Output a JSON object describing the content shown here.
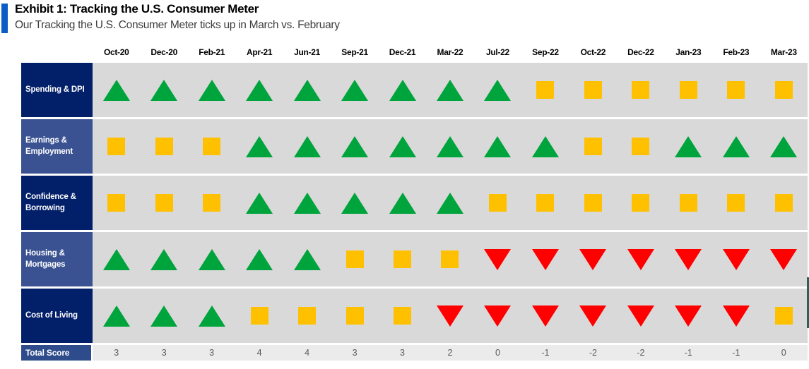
{
  "header": {
    "title": "Exhibit 1: Tracking the U.S. Consumer Meter",
    "subtitle": "Our Tracking the U.S. Consumer Meter ticks up in March vs. February",
    "accent_color": "#0a5dc6"
  },
  "chart_data": {
    "type": "heatmap",
    "title": "Exhibit 1: Tracking the U.S. Consumer Meter",
    "subtitle": "Our Tracking the U.S. Consumer Meter ticks up in March vs. February",
    "columns": [
      "Oct-20",
      "Dec-20",
      "Feb-21",
      "Apr-21",
      "Jun-21",
      "Sep-21",
      "Dec-21",
      "Mar-22",
      "Jul-22",
      "Sep-22",
      "Oct-22",
      "Dec-22",
      "Jan-23",
      "Feb-23",
      "Mar-23"
    ],
    "rows": [
      {
        "label": "Spending & DPI",
        "values": [
          "up",
          "up",
          "up",
          "up",
          "up",
          "up",
          "up",
          "up",
          "up",
          "neutral",
          "neutral",
          "neutral",
          "neutral",
          "neutral",
          "neutral"
        ]
      },
      {
        "label": "Earnings & Employment",
        "values": [
          "neutral",
          "neutral",
          "neutral",
          "up",
          "up",
          "up",
          "up",
          "up",
          "up",
          "up",
          "neutral",
          "neutral",
          "up",
          "up",
          "up"
        ]
      },
      {
        "label": "Confidence & Borrowing",
        "values": [
          "neutral",
          "neutral",
          "neutral",
          "up",
          "up",
          "up",
          "up",
          "up",
          "neutral",
          "neutral",
          "neutral",
          "neutral",
          "neutral",
          "neutral",
          "neutral"
        ]
      },
      {
        "label": "Housing & Mortgages",
        "values": [
          "up",
          "up",
          "up",
          "up",
          "up",
          "neutral",
          "neutral",
          "neutral",
          "down",
          "down",
          "down",
          "down",
          "down",
          "down",
          "down"
        ]
      },
      {
        "label": "Cost of Living",
        "values": [
          "up",
          "up",
          "up",
          "neutral",
          "neutral",
          "neutral",
          "neutral",
          "down",
          "down",
          "down",
          "down",
          "down",
          "down",
          "down",
          "neutral"
        ]
      }
    ],
    "total_row": {
      "label": "Total Score",
      "values": [
        "3",
        "3",
        "3",
        "4",
        "4",
        "3",
        "3",
        "2",
        "0",
        "-1",
        "-2",
        "-2",
        "-1",
        "-1",
        "0"
      ]
    },
    "symbols": {
      "up": "green-up-triangle-icon",
      "neutral": "yellow-square-icon",
      "down": "red-down-triangle-icon"
    },
    "colors": {
      "up": "#00a43c",
      "neutral": "#ffc000",
      "down": "#fe0000",
      "row_label_dark": "#021f69",
      "row_label_medium": "#3a5291",
      "total_label": "#2e4c8c",
      "cell_bg": "#d9d9d9",
      "total_bg": "#ebebeb"
    },
    "layout": {
      "grid": "off",
      "legend_position": "none"
    }
  }
}
